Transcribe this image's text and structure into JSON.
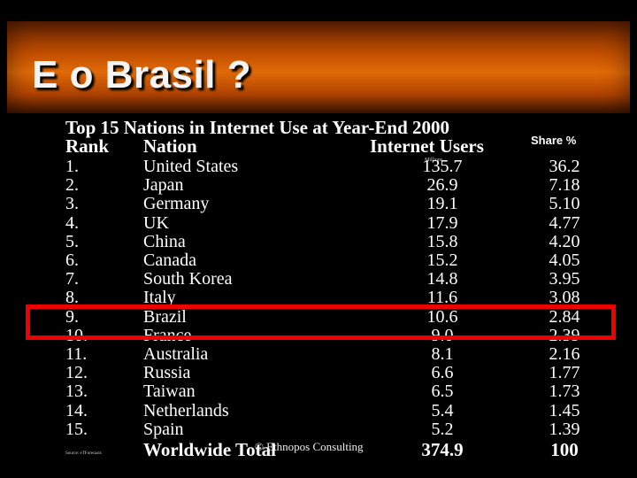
{
  "slide": {
    "title": "E o Brasil ?",
    "heading": "Top 15 Nations in Internet Use at Year-End 2000",
    "columns": {
      "rank": "Rank",
      "nation": "Nation",
      "users": "Internet Users",
      "share": "Share %"
    },
    "units_note": "Millions",
    "rows": [
      {
        "rank": "1.",
        "nation": "United States",
        "users": "135.7",
        "share": "36.2"
      },
      {
        "rank": "2.",
        "nation": "Japan",
        "users": "26.9",
        "share": "7.18"
      },
      {
        "rank": "3.",
        "nation": "Germany",
        "users": "19.1",
        "share": "5.10"
      },
      {
        "rank": "4.",
        "nation": "UK",
        "users": "17.9",
        "share": "4.77"
      },
      {
        "rank": "5.",
        "nation": "China",
        "users": "15.8",
        "share": "4.20"
      },
      {
        "rank": "6.",
        "nation": "Canada",
        "users": "15.2",
        "share": "4.05"
      },
      {
        "rank": "7.",
        "nation": "South Korea",
        "users": "14.8",
        "share": "3.95"
      },
      {
        "rank": "8.",
        "nation": "Italy",
        "users": "11.6",
        "share": "3.08"
      },
      {
        "rank": "9.",
        "nation": "Brazil",
        "users": "10.6",
        "share": "2.84"
      },
      {
        "rank": "10.",
        "nation": "France",
        "users": "9.0",
        "share": "2.39"
      },
      {
        "rank": "11.",
        "nation": "Australia",
        "users": "8.1",
        "share": "2.16"
      },
      {
        "rank": "12.",
        "nation": "Russia",
        "users": "6.6",
        "share": "1.77"
      },
      {
        "rank": "13.",
        "nation": "Taiwan",
        "users": "6.5",
        "share": "1.73"
      },
      {
        "rank": "14.",
        "nation": "Netherlands",
        "users": "5.4",
        "share": "1.45"
      },
      {
        "rank": "15.",
        "nation": "Spain",
        "users": "5.2",
        "share": "1.39"
      }
    ],
    "total": {
      "label": "Worldwide Total",
      "users": "374.9",
      "share": "100"
    },
    "highlighted_nation": "Brazil",
    "highlight_color": "#ee0000",
    "copyright": "© Ethnopos Consulting",
    "source": "Source: eTForecasts"
  }
}
